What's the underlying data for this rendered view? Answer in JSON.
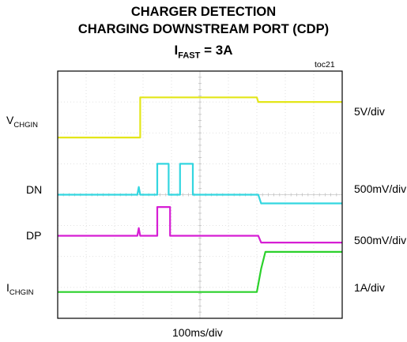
{
  "title": {
    "line1": "CHARGER DETECTION",
    "line2": "CHARGING DOWNSTREAM PORT (CDP)",
    "line3_main": "I",
    "line3_sub": "FAST",
    "line3_rest": " = 3A"
  },
  "figure_id": "toc21",
  "chart_data": {
    "type": "line",
    "title": "CHARGER DETECTION CHARGING DOWNSTREAM PORT (CDP) IFAST = 3A",
    "xlabel": "100ms/div",
    "x_divisions": 10,
    "y_divisions": 8,
    "grid": true,
    "series": [
      {
        "name_main": "V",
        "name_sub": "CHGIN",
        "scale": "5V/div",
        "color": "#e3e619",
        "points": [
          [
            0,
            5.85
          ],
          [
            2.9,
            5.85
          ],
          [
            2.9,
            7.15
          ],
          [
            7.0,
            7.15
          ],
          [
            7.05,
            7.0
          ],
          [
            10,
            7.0
          ]
        ]
      },
      {
        "name_main": "DN",
        "name_sub": "",
        "scale": "500mV/div",
        "color": "#33d6e0",
        "points": [
          [
            0,
            4.0
          ],
          [
            2.8,
            4.0
          ],
          [
            2.85,
            4.25
          ],
          [
            2.9,
            4.0
          ],
          [
            3.5,
            4.0
          ],
          [
            3.5,
            5.0
          ],
          [
            3.9,
            5.0
          ],
          [
            3.9,
            4.0
          ],
          [
            4.3,
            4.0
          ],
          [
            4.3,
            5.0
          ],
          [
            4.75,
            5.0
          ],
          [
            4.75,
            4.0
          ],
          [
            7.05,
            4.0
          ],
          [
            7.15,
            3.72
          ],
          [
            10,
            3.72
          ]
        ]
      },
      {
        "name_main": "DP",
        "name_sub": "",
        "scale": "500mV/div",
        "color": "#d61ed4",
        "points": [
          [
            0,
            2.67
          ],
          [
            2.8,
            2.67
          ],
          [
            2.85,
            2.92
          ],
          [
            2.9,
            2.67
          ],
          [
            3.5,
            2.67
          ],
          [
            3.5,
            3.6
          ],
          [
            3.95,
            3.6
          ],
          [
            3.95,
            2.67
          ],
          [
            7.05,
            2.67
          ],
          [
            7.15,
            2.45
          ],
          [
            10,
            2.45
          ]
        ]
      },
      {
        "name_main": "I",
        "name_sub": "CHGIN",
        "scale": "1A/div",
        "color": "#2bd12b",
        "points": [
          [
            0,
            0.85
          ],
          [
            7.0,
            0.85
          ],
          [
            7.15,
            1.6
          ],
          [
            7.3,
            2.15
          ],
          [
            10,
            2.15
          ]
        ]
      }
    ]
  }
}
